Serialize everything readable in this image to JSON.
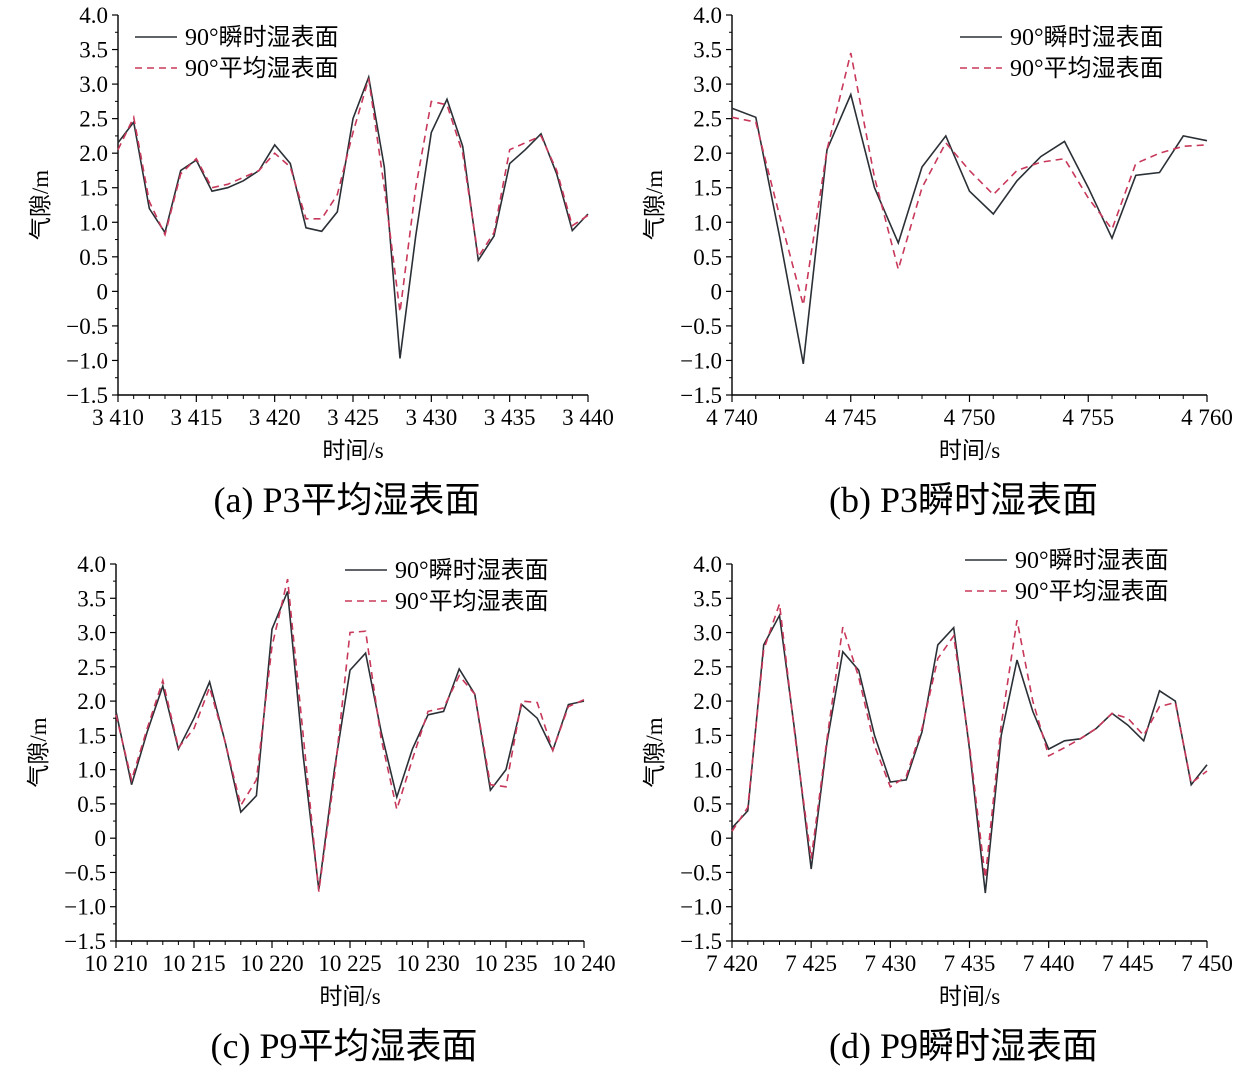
{
  "colors": {
    "instant": "#2b3036",
    "average": "#c8385a",
    "axis": "#000000"
  },
  "chart_data": [
    {
      "type": "line",
      "caption": "(a) P3平均湿表面",
      "xlabel": "时间/s",
      "ylabel": "气隙/m",
      "xlim": [
        3410,
        3440
      ],
      "ylim": [
        -1.5,
        4.0
      ],
      "xticks": [
        3410,
        3415,
        3420,
        3425,
        3430,
        3435,
        3440
      ],
      "xtick_labels": [
        "3 410",
        "3 415",
        "3 420",
        "3 425",
        "3 430",
        "3 435",
        "3 440"
      ],
      "yticks": [
        4.0,
        3.5,
        3.0,
        2.5,
        2.0,
        1.5,
        1.0,
        0.5,
        0,
        -0.5,
        -1.0,
        -1.5
      ],
      "ytick_labels": [
        "4.0",
        "3.5",
        "3.0",
        "2.5",
        "2.0",
        "1.5",
        "1.0",
        "0.5",
        "0",
        "−0.5",
        "−1.0",
        "−1.5"
      ],
      "legend_position": "top-left",
      "x": [
        3410,
        3411,
        3412,
        3413,
        3414,
        3415,
        3416,
        3417,
        3418,
        3419,
        3420,
        3421,
        3422,
        3423,
        3424,
        3425,
        3426,
        3427,
        3428,
        3429,
        3430,
        3431,
        3432,
        3433,
        3434,
        3435,
        3436,
        3437,
        3438,
        3439,
        3440
      ],
      "series": [
        {
          "name": "90°瞬时湿表面",
          "style": "solid",
          "values": [
            2.15,
            2.45,
            1.2,
            0.85,
            1.75,
            1.9,
            1.45,
            1.5,
            1.6,
            1.75,
            2.12,
            1.85,
            0.92,
            0.87,
            1.15,
            2.5,
            3.1,
            1.8,
            -0.97,
            0.8,
            2.3,
            2.78,
            2.1,
            0.45,
            0.8,
            1.85,
            2.05,
            2.28,
            1.7,
            0.88,
            1.12
          ]
        },
        {
          "name": "90°平均湿表面",
          "style": "dashed",
          "values": [
            2.05,
            2.52,
            1.3,
            0.82,
            1.7,
            1.92,
            1.5,
            1.55,
            1.65,
            1.75,
            2.0,
            1.8,
            1.05,
            1.05,
            1.4,
            2.3,
            3.08,
            1.5,
            -0.3,
            1.5,
            2.75,
            2.7,
            2.0,
            0.5,
            0.85,
            2.05,
            2.15,
            2.25,
            1.75,
            0.95,
            1.1
          ]
        }
      ]
    },
    {
      "type": "line",
      "caption": "(b) P3瞬时湿表面",
      "xlabel": "时间/s",
      "ylabel": "气隙/m",
      "xlim": [
        4740,
        4760
      ],
      "ylim": [
        -1.5,
        4.0
      ],
      "xticks": [
        4740,
        4745,
        4750,
        4755,
        4760
      ],
      "xtick_labels": [
        "4 740",
        "4 745",
        "4 750",
        "4 755",
        "4 760"
      ],
      "yticks": [
        4.0,
        3.5,
        3.0,
        2.5,
        2.0,
        1.5,
        1.0,
        0.5,
        0,
        -0.5,
        -1.0,
        -1.5
      ],
      "ytick_labels": [
        "4.0",
        "3.5",
        "3.0",
        "2.5",
        "2.0",
        "1.5",
        "1.0",
        "0.5",
        "0",
        "−0.5",
        "−1.0",
        "−1.5"
      ],
      "legend_position": "top-right",
      "x": [
        4740,
        4741,
        4742,
        4743,
        4744,
        4745,
        4746,
        4747,
        4748,
        4749,
        4750,
        4751,
        4752,
        4753,
        4754,
        4755,
        4756,
        4757,
        4758,
        4759,
        4760
      ],
      "series": [
        {
          "name": "90°瞬时湿表面",
          "style": "solid",
          "values": [
            2.65,
            2.52,
            0.8,
            -1.05,
            2.05,
            2.85,
            1.5,
            0.7,
            1.8,
            2.25,
            1.45,
            1.12,
            1.6,
            1.95,
            2.17,
            1.5,
            0.77,
            1.68,
            1.72,
            2.25,
            2.18
          ]
        },
        {
          "name": "90°平均湿表面",
          "style": "dashed",
          "values": [
            2.52,
            2.45,
            1.1,
            -0.2,
            2.05,
            3.45,
            1.65,
            0.32,
            1.5,
            2.15,
            1.75,
            1.4,
            1.75,
            1.87,
            1.92,
            1.35,
            0.9,
            1.85,
            2.0,
            2.1,
            2.12
          ]
        }
      ]
    },
    {
      "type": "line",
      "caption": "(c) P9平均湿表面",
      "xlabel": "时间/s",
      "ylabel": "气隙/m",
      "xlim": [
        10210,
        10240
      ],
      "ylim": [
        -1.5,
        4.0
      ],
      "xticks": [
        10210,
        10215,
        10220,
        10225,
        10230,
        10235,
        10240
      ],
      "xtick_labels": [
        "10 210",
        "10 215",
        "10 220",
        "10 225",
        "10 230",
        "10 235",
        "10 240"
      ],
      "yticks": [
        4.0,
        3.5,
        3.0,
        2.5,
        2.0,
        1.5,
        1.0,
        0.5,
        0,
        -0.5,
        -1.0,
        -1.5
      ],
      "ytick_labels": [
        "4.0",
        "3.5",
        "3.0",
        "2.5",
        "2.0",
        "1.5",
        "1.0",
        "0.5",
        "0",
        "−0.5",
        "−1.0",
        "−1.5"
      ],
      "legend_position": "top-right",
      "x": [
        10210,
        10211,
        10212,
        10213,
        10214,
        10215,
        10216,
        10217,
        10218,
        10219,
        10220,
        10221,
        10222,
        10223,
        10224,
        10225,
        10226,
        10227,
        10228,
        10229,
        10230,
        10231,
        10232,
        10233,
        10234,
        10235,
        10236,
        10237,
        10238,
        10239,
        10240
      ],
      "series": [
        {
          "name": "90°瞬时湿表面",
          "style": "solid",
          "values": [
            1.85,
            0.78,
            1.55,
            2.22,
            1.3,
            1.75,
            2.28,
            1.4,
            0.38,
            0.62,
            3.05,
            3.6,
            1.2,
            -0.75,
            1.0,
            2.45,
            2.7,
            1.55,
            0.6,
            1.3,
            1.8,
            1.85,
            2.47,
            2.1,
            0.7,
            1.0,
            1.95,
            1.75,
            1.28,
            1.95,
            2.0
          ]
        },
        {
          "name": "90°平均湿表面",
          "style": "dashed",
          "values": [
            1.8,
            0.85,
            1.6,
            2.3,
            1.32,
            1.6,
            2.2,
            1.4,
            0.48,
            0.85,
            2.8,
            3.78,
            1.5,
            -0.78,
            0.9,
            3.0,
            3.02,
            1.45,
            0.42,
            1.15,
            1.85,
            1.9,
            2.37,
            2.1,
            0.78,
            0.75,
            2.0,
            1.98,
            1.28,
            1.92,
            2.02
          ]
        }
      ]
    },
    {
      "type": "line",
      "caption": "(d) P9瞬时湿表面",
      "xlabel": "时间/s",
      "ylabel": "气隙/m",
      "xlim": [
        7420,
        7450
      ],
      "ylim": [
        -1.5,
        4.0
      ],
      "xticks": [
        7420,
        7425,
        7430,
        7435,
        7440,
        7445,
        7450
      ],
      "xtick_labels": [
        "7 420",
        "7 425",
        "7 430",
        "7 435",
        "7 440",
        "7 445",
        "7 450"
      ],
      "yticks": [
        4.0,
        3.5,
        3.0,
        2.5,
        2.0,
        1.5,
        1.0,
        0.5,
        0,
        -0.5,
        -1.0,
        -1.5
      ],
      "ytick_labels": [
        "4.0",
        "3.5",
        "3.0",
        "2.5",
        "2.0",
        "1.5",
        "1.0",
        "0.5",
        "0",
        "−0.5",
        "−1.0",
        "−1.5"
      ],
      "legend_position": "top-right",
      "x": [
        7420,
        7421,
        7422,
        7423,
        7424,
        7425,
        7426,
        7427,
        7428,
        7429,
        7430,
        7431,
        7432,
        7433,
        7434,
        7435,
        7436,
        7437,
        7438,
        7439,
        7440,
        7441,
        7442,
        7443,
        7444,
        7445,
        7446,
        7447,
        7448,
        7449,
        7450
      ],
      "series": [
        {
          "name": "90°瞬时湿表面",
          "style": "solid",
          "values": [
            0.15,
            0.4,
            2.82,
            3.25,
            1.5,
            -0.45,
            1.4,
            2.72,
            2.45,
            1.5,
            0.82,
            0.85,
            1.55,
            2.82,
            3.07,
            1.3,
            -0.8,
            1.5,
            2.6,
            1.85,
            1.3,
            1.42,
            1.45,
            1.6,
            1.82,
            1.65,
            1.42,
            2.15,
            2.0,
            0.78,
            1.07
          ]
        },
        {
          "name": "90°平均湿表面",
          "style": "dashed",
          "values": [
            0.1,
            0.45,
            2.75,
            3.42,
            1.45,
            -0.3,
            1.45,
            3.08,
            2.35,
            1.35,
            0.75,
            0.9,
            1.6,
            2.62,
            2.95,
            1.35,
            -0.58,
            1.65,
            3.18,
            2.0,
            1.2,
            1.32,
            1.45,
            1.6,
            1.82,
            1.75,
            1.5,
            1.92,
            1.98,
            0.8,
            0.98
          ]
        }
      ]
    }
  ]
}
